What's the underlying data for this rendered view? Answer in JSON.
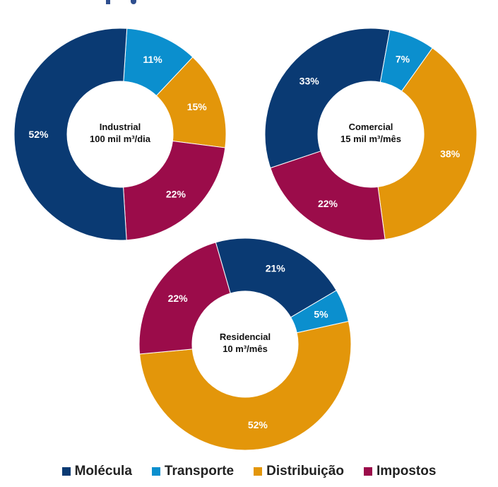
{
  "colors": {
    "molecula": "#0a3a73",
    "transporte": "#0b8fce",
    "distribuicao": "#e3960a",
    "impostos": "#9b0c4a"
  },
  "legend": [
    {
      "label": "Molécula",
      "color": "#0a3a73"
    },
    {
      "label": "Transporte",
      "color": "#0b8fce"
    },
    {
      "label": "Distribuição",
      "color": "#e3960a"
    },
    {
      "label": "Impostos",
      "color": "#9b0c4a"
    }
  ],
  "chart_data": [
    {
      "type": "pie",
      "center_label": [
        "Industrial",
        "100 mil m³/dia"
      ],
      "categories": [
        "Transporte",
        "Distribuição",
        "Impostos",
        "Molécula"
      ],
      "values": [
        11,
        15,
        22,
        52
      ],
      "labels": [
        "11%",
        "15%",
        "22%",
        "52%"
      ]
    },
    {
      "type": "pie",
      "center_label": [
        "Comercial",
        "15 mil m³/mês"
      ],
      "categories": [
        "Distribuição",
        "Impostos",
        "Molécula",
        "Transporte"
      ],
      "values": [
        38,
        22,
        33,
        7
      ],
      "labels": [
        "38%",
        "22%",
        "33%",
        "7%"
      ]
    },
    {
      "type": "pie",
      "center_label": [
        "Residencial",
        "10 m³/mês"
      ],
      "categories": [
        "Distribuição",
        "Impostos",
        "Molécula",
        "Transporte"
      ],
      "values": [
        52,
        22,
        21,
        5
      ],
      "labels": [
        "52%",
        "22%",
        "21%",
        "5%"
      ]
    }
  ]
}
